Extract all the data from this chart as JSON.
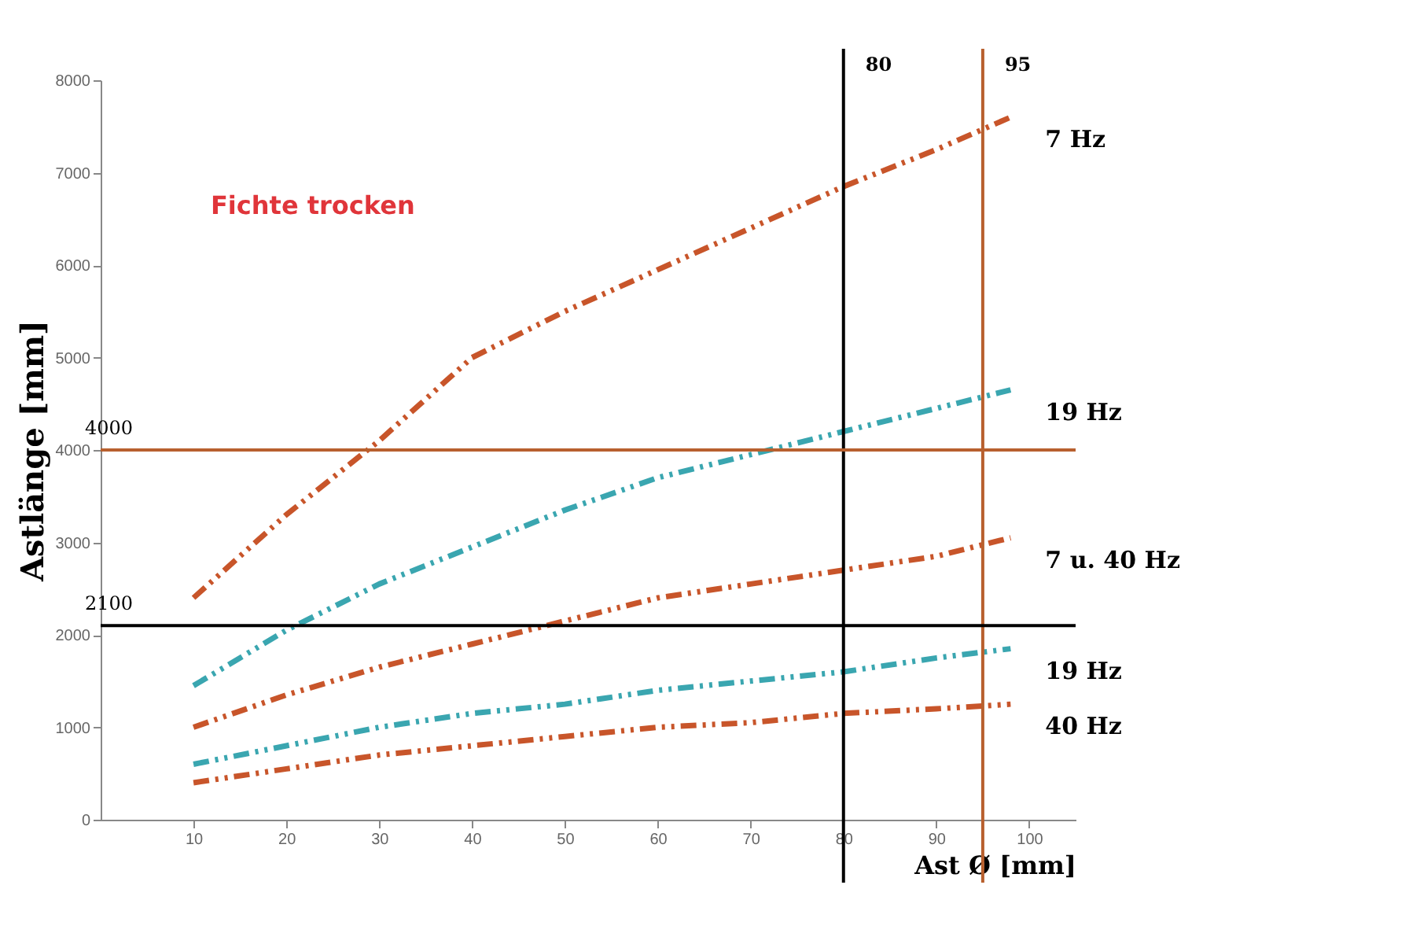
{
  "chart_data": {
    "type": "line",
    "annotations": [
      "Fichte trocken"
    ],
    "xlabel": "Ast Ø  [mm]",
    "ylabel": "Astlänge [mm]",
    "x": [
      10,
      20,
      30,
      40,
      50,
      60,
      70,
      80,
      90,
      98
    ],
    "series": [
      {
        "name": "7 Hz",
        "color": "#c8552a",
        "line_style": "dashed",
        "values": [
          2400,
          3300,
          4100,
          5000,
          5500,
          5950,
          6400,
          6850,
          7250,
          7600
        ]
      },
      {
        "name": "19 Hz",
        "color": "#3aa6b0",
        "line_style": "dashed",
        "values": [
          1450,
          2050,
          2550,
          2950,
          3350,
          3700,
          3950,
          4200,
          4450,
          4650
        ]
      },
      {
        "name": "7 u. 40 Hz",
        "color": "#c8552a",
        "line_style": "dashed",
        "values": [
          1000,
          1350,
          1650,
          1900,
          2150,
          2400,
          2550,
          2700,
          2850,
          3050
        ]
      },
      {
        "name": "19 Hz",
        "color": "#3aa6b0",
        "line_style": "dashed",
        "values": [
          600,
          800,
          1000,
          1150,
          1250,
          1400,
          1500,
          1600,
          1750,
          1850
        ]
      },
      {
        "name": "40 Hz",
        "color": "#c8552a",
        "line_style": "dashed",
        "values": [
          400,
          550,
          700,
          800,
          900,
          1000,
          1050,
          1150,
          1200,
          1250
        ]
      }
    ],
    "xlim": [
      0,
      105
    ],
    "ylim": [
      0,
      8000
    ],
    "xticks": [
      10,
      20,
      30,
      40,
      50,
      60,
      70,
      80,
      90,
      100
    ],
    "yticks": [
      0,
      1000,
      2000,
      3000,
      4000,
      5000,
      6000,
      7000,
      8000
    ],
    "ref_lines": [
      {
        "axis": "x",
        "value": 80,
        "label": "80",
        "color": "#000000"
      },
      {
        "axis": "x",
        "value": 95,
        "label": "95",
        "color": "#b8602e"
      },
      {
        "axis": "y",
        "value": 4000,
        "label": "4000",
        "color": "#b8602e"
      },
      {
        "axis": "y",
        "value": 2100,
        "label": "2100",
        "color": "#000000"
      }
    ],
    "grid": false,
    "marker": "none"
  }
}
